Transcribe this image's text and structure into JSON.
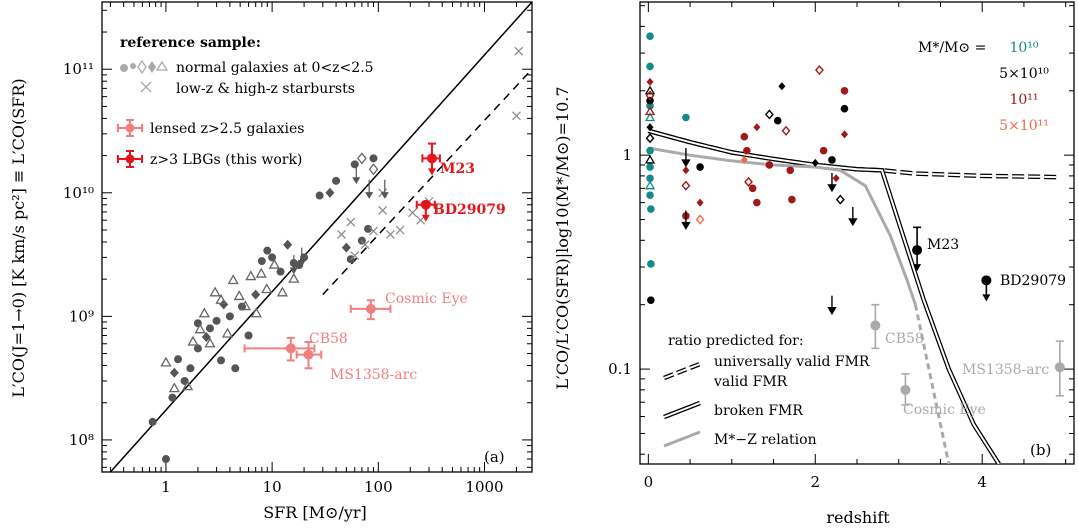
{
  "chart_data": [
    {
      "type": "scatter",
      "panel_label": "(a)",
      "xlabel": "SFR [M⊙/yr]",
      "ylabel": "L′CO(J=1→0) [K km/s pc²] ≡ L′CO(SFR)",
      "xscale": "log",
      "yscale": "log",
      "xlim": [
        0.25,
        2800
      ],
      "ylim": [
        55000000.0,
        350000000000.0
      ],
      "x_ticklabels": [
        "1",
        "10",
        "100",
        "1000"
      ],
      "y_ticklabels": [
        "10⁸",
        "10⁹",
        "10¹⁰",
        "10¹¹"
      ],
      "legend": {
        "header": "reference sample:",
        "items": [
          "normal galaxies at 0<z<2.5",
          "low-z & high-z starbursts",
          "lensed z>2.5 galaxies",
          "z>3 LBGs (this work)"
        ]
      },
      "labelled_points": [
        {
          "label": "M23",
          "x": 320,
          "y": 19000000000.0,
          "color": "#e8141c",
          "upper_limit": true
        },
        {
          "label": "BD29079",
          "x": 280,
          "y": 8000000000.0,
          "color": "#e8141c",
          "upper_limit": true
        },
        {
          "label": "Cosmic Eye",
          "x": 85,
          "y": 1150000000.0,
          "color": "#f08080"
        },
        {
          "label": "CB58",
          "x": 15,
          "y": 550000000.0,
          "color": "#f08080"
        },
        {
          "label": "MS1358-arc",
          "x": 22,
          "y": 490000000.0,
          "color": "#f08080"
        }
      ],
      "lines": [
        {
          "style": "solid",
          "points": [
            [
              0.3,
              55000000.0
            ],
            [
              2800,
              350000000000.0
            ]
          ]
        },
        {
          "style": "dashed",
          "points": [
            [
              30,
              1500000000.0
            ],
            [
              2800,
              100000000000.0
            ]
          ]
        }
      ],
      "series": [
        {
          "name": "normal galaxies at 0<z<2.5",
          "color": "#555555",
          "points": [
            [
              0.75,
              140000000.0
            ],
            [
              1.0,
              70000000.0
            ],
            [
              1.15,
              220000000.0
            ],
            [
              1.2,
              350000000.0
            ],
            [
              1.3,
              450000000.0
            ],
            [
              1.5,
              300000000.0
            ],
            [
              1.7,
              380000000.0
            ],
            [
              2.0,
              550000000.0
            ],
            [
              2.4,
              680000000.0
            ],
            [
              2.0,
              880000000.0
            ],
            [
              2.6,
              800000000.0
            ],
            [
              3.0,
              920000000.0
            ],
            [
              3.3,
              440000000.0
            ],
            [
              3.5,
              1250000000.0
            ],
            [
              4.0,
              1000000000.0
            ],
            [
              4.5,
              380000000.0
            ],
            [
              5.2,
              1200000000.0
            ],
            [
              6.0,
              700000000.0
            ],
            [
              7.0,
              1500000000.0
            ],
            [
              8.0,
              2800000000.0
            ],
            [
              9.0,
              3400000000.0
            ],
            [
              10.0,
              3000000000.0
            ],
            [
              12.0,
              2300000000.0
            ],
            [
              14.0,
              3800000000.0
            ],
            [
              16.0,
              2700000000.0
            ],
            [
              18.0,
              2600000000.0
            ],
            [
              20.0,
              3000000000.0
            ],
            [
              28.0,
              9500000000.0
            ],
            [
              35.0,
              10000000000.0
            ],
            [
              40.0,
              12500000000.0
            ],
            [
              60.0,
              17000000000.0
            ],
            [
              70.0,
              4100000000.0
            ],
            [
              80.0,
              5100000000.0
            ],
            [
              50.0,
              3600000000.0
            ],
            [
              55.0,
              2900000000.0
            ],
            [
              90.0,
              19000000000.0
            ]
          ]
        },
        {
          "name": "normal galaxies at 0<z<2.5 (open)",
          "color": "#666666",
          "points": [
            [
              1.0,
              420000000.0
            ],
            [
              1.2,
              260000000.0
            ],
            [
              1.6,
              270000000.0
            ],
            [
              1.8,
              620000000.0
            ],
            [
              2.1,
              780000000.0
            ],
            [
              2.3,
              1050000000.0
            ],
            [
              2.6,
              600000000.0
            ],
            [
              2.9,
              1550000000.0
            ],
            [
              3.3,
              1350000000.0
            ],
            [
              3.8,
              720000000.0
            ],
            [
              4.3,
              1950000000.0
            ],
            [
              4.9,
              1450000000.0
            ],
            [
              5.6,
              1200000000.0
            ],
            [
              6.3,
              2100000000.0
            ],
            [
              7.1,
              1050000000.0
            ],
            [
              7.9,
              2200000000.0
            ],
            [
              8.9,
              1650000000.0
            ],
            [
              10.5,
              2600000000.0
            ],
            [
              12.5,
              1550000000.0
            ],
            [
              16.0,
              2000000000.0
            ],
            [
              70.0,
              19000000000.0
            ],
            [
              90.0,
              15500000000.0
            ]
          ]
        },
        {
          "name": "low-z & high-z starbursts",
          "color": "#888888",
          "points": [
            [
              45,
              4600000000.0
            ],
            [
              55,
              5800000000.0
            ],
            [
              60,
              3100000000.0
            ],
            [
              75,
              3800000000.0
            ],
            [
              90,
              4900000000.0
            ],
            [
              110,
              7200000000.0
            ],
            [
              130,
              4600000000.0
            ],
            [
              160,
              5000000000.0
            ],
            [
              210,
              6900000000.0
            ],
            [
              250,
              6000000000.0
            ],
            [
              300,
              8500000000.0
            ],
            [
              2100,
              140000000000.0
            ],
            [
              2000,
              42000000000.0
            ],
            [
              110,
              10000000000.0
            ]
          ]
        },
        {
          "name": "normal galaxies upper limits",
          "color": "#555555",
          "points": [
            [
              16,
              2700000000.0
            ],
            [
              19,
              3100000000.0
            ],
            [
              62,
              14500000000.0
            ],
            [
              82,
              11000000000.0
            ],
            [
              115,
              11000000000.0
            ]
          ]
        }
      ]
    },
    {
      "type": "line",
      "panel_label": "(b)",
      "xlabel": "redshift",
      "ylabel": "L′CO/L′CO(SFR)|log10(M*/M⊙)=10.7",
      "yscale": "log",
      "xlim": [
        -0.1,
        5.1
      ],
      "ylim": [
        0.036,
        5.2
      ],
      "x_ticklabels": [
        "0",
        "2",
        "4"
      ],
      "y_ticklabels": [
        "0.1",
        "1"
      ],
      "mass_legend": {
        "header": "M*/M⊙ = ",
        "items": [
          {
            "text": "10¹⁰",
            "color": "#108a8a"
          },
          {
            "text": "5×10¹⁰",
            "color": "#000000"
          },
          {
            "text": "10¹¹",
            "color": "#a01818"
          },
          {
            "text": "5×10¹¹",
            "color": "#f06a4a"
          }
        ]
      },
      "line_legend": {
        "header": "ratio predicted for:",
        "items": [
          "universally valid FMR",
          "broken FMR",
          "M*−Z relation"
        ]
      },
      "series": [
        {
          "name": "universally valid FMR",
          "style": "double-dashed",
          "x": [
            0,
            0.5,
            1.0,
            1.5,
            2.0,
            2.5,
            2.8,
            3.2,
            3.6,
            4.0,
            4.5,
            4.9
          ],
          "y": [
            1.3,
            1.15,
            1.03,
            0.96,
            0.9,
            0.86,
            0.85,
            0.82,
            0.81,
            0.8,
            0.795,
            0.79
          ]
        },
        {
          "name": "broken FMR",
          "style": "double-solid",
          "x": [
            0,
            0.5,
            1.0,
            1.5,
            2.0,
            2.5,
            2.8,
            3.3,
            3.6,
            3.9,
            4.2
          ],
          "y": [
            1.3,
            1.15,
            1.03,
            0.96,
            0.9,
            0.86,
            0.85,
            0.21,
            0.1,
            0.055,
            0.036
          ]
        },
        {
          "name": "M*−Z relation",
          "style": "solid-gray",
          "x": [
            0,
            0.5,
            1.0,
            1.5,
            2.0,
            2.3,
            2.6,
            2.9,
            3.1,
            3.2,
            3.3,
            3.4,
            3.5,
            3.6
          ],
          "y": [
            1.08,
            1.0,
            0.94,
            0.9,
            0.88,
            0.85,
            0.72,
            0.42,
            0.26,
            0.2,
            0.13,
            0.085,
            0.055,
            0.036
          ]
        }
      ],
      "labelled_points": [
        {
          "label": "M23",
          "x": 3.22,
          "y": 0.36,
          "color": "#000000",
          "upper_limit": true
        },
        {
          "label": "BD29079",
          "x": 4.05,
          "y": 0.26,
          "color": "#000000",
          "upper_limit": true
        },
        {
          "label": "CB58",
          "x": 2.72,
          "y": 0.16,
          "color": "#aaaaaa"
        },
        {
          "label": "Cosmic Eye",
          "x": 3.08,
          "y": 0.08,
          "color": "#aaaaaa"
        },
        {
          "label": "MS1358-arc",
          "x": 4.93,
          "y": 0.102,
          "color": "#aaaaaa"
        }
      ],
      "points": [
        {
          "x": 0.02,
          "y": 3.6,
          "c": "#108a8a"
        },
        {
          "x": 0.02,
          "y": 2.6,
          "c": "#108a8a"
        },
        {
          "x": 0.02,
          "y": 1.7,
          "c": "#108a8a"
        },
        {
          "x": 0.02,
          "y": 1.5,
          "c": "#108a8a"
        },
        {
          "x": 0.02,
          "y": 1.05,
          "c": "#108a8a"
        },
        {
          "x": 0.02,
          "y": 0.88,
          "c": "#108a8a"
        },
        {
          "x": 0.02,
          "y": 0.78,
          "c": "#108a8a"
        },
        {
          "x": 0.02,
          "y": 0.72,
          "c": "#108a8a"
        },
        {
          "x": 0.02,
          "y": 0.65,
          "c": "#108a8a"
        },
        {
          "x": 0.03,
          "y": 0.56,
          "c": "#108a8a"
        },
        {
          "x": 0.03,
          "y": 0.31,
          "c": "#108a8a"
        },
        {
          "x": 0.02,
          "y": 2.0,
          "c": "#000000"
        },
        {
          "x": 0.02,
          "y": 1.8,
          "c": "#000000"
        },
        {
          "x": 0.02,
          "y": 1.35,
          "c": "#000000"
        },
        {
          "x": 0.02,
          "y": 1.2,
          "c": "#000000"
        },
        {
          "x": 0.02,
          "y": 0.95,
          "c": "#000000"
        },
        {
          "x": 0.03,
          "y": 0.21,
          "c": "#000000"
        },
        {
          "x": 0.02,
          "y": 2.2,
          "c": "#a01818"
        },
        {
          "x": 0.02,
          "y": 1.9,
          "c": "#a01818"
        },
        {
          "x": 0.02,
          "y": 1.6,
          "c": "#a01818"
        },
        {
          "x": 0.45,
          "y": 1.5,
          "c": "#108a8a"
        },
        {
          "x": 0.45,
          "y": 0.85,
          "c": "#a01818"
        },
        {
          "x": 0.45,
          "y": 0.72,
          "c": "#a01818"
        },
        {
          "x": 0.45,
          "y": 0.52,
          "c": "#a01818"
        },
        {
          "x": 0.62,
          "y": 0.88,
          "c": "#000000"
        },
        {
          "x": 0.62,
          "y": 0.6,
          "c": "#a01818"
        },
        {
          "x": 0.62,
          "y": 0.5,
          "c": "#f06a4a"
        },
        {
          "x": 1.15,
          "y": 1.22,
          "c": "#a01818"
        },
        {
          "x": 1.18,
          "y": 1.05,
          "c": "#a01818"
        },
        {
          "x": 1.15,
          "y": 0.95,
          "c": "#f06a4a"
        },
        {
          "x": 1.2,
          "y": 0.75,
          "c": "#a01818"
        },
        {
          "x": 1.25,
          "y": 0.7,
          "c": "#a01818"
        },
        {
          "x": 1.3,
          "y": 0.6,
          "c": "#a01818"
        },
        {
          "x": 1.3,
          "y": 1.35,
          "c": "#a01818"
        },
        {
          "x": 1.45,
          "y": 1.55,
          "c": "#000000"
        },
        {
          "x": 1.45,
          "y": 0.9,
          "c": "#a01818"
        },
        {
          "x": 1.55,
          "y": 1.45,
          "c": "#000000"
        },
        {
          "x": 1.6,
          "y": 2.1,
          "c": "#000000"
        },
        {
          "x": 1.65,
          "y": 1.3,
          "c": "#a01818"
        },
        {
          "x": 1.7,
          "y": 0.85,
          "c": "#a01818"
        },
        {
          "x": 1.72,
          "y": 0.62,
          "c": "#a01818"
        },
        {
          "x": 2.0,
          "y": 0.92,
          "c": "#000000"
        },
        {
          "x": 2.05,
          "y": 2.5,
          "c": "#a01818"
        },
        {
          "x": 2.1,
          "y": 1.05,
          "c": "#a01818"
        },
        {
          "x": 2.2,
          "y": 0.95,
          "c": "#000000"
        },
        {
          "x": 2.25,
          "y": 0.78,
          "c": "#a01818"
        },
        {
          "x": 2.3,
          "y": 0.62,
          "c": "#000000"
        },
        {
          "x": 2.35,
          "y": 2.0,
          "c": "#a01818"
        },
        {
          "x": 2.35,
          "y": 1.65,
          "c": "#000000"
        },
        {
          "x": 2.35,
          "y": 1.25,
          "c": "#a01818"
        }
      ]
    }
  ]
}
